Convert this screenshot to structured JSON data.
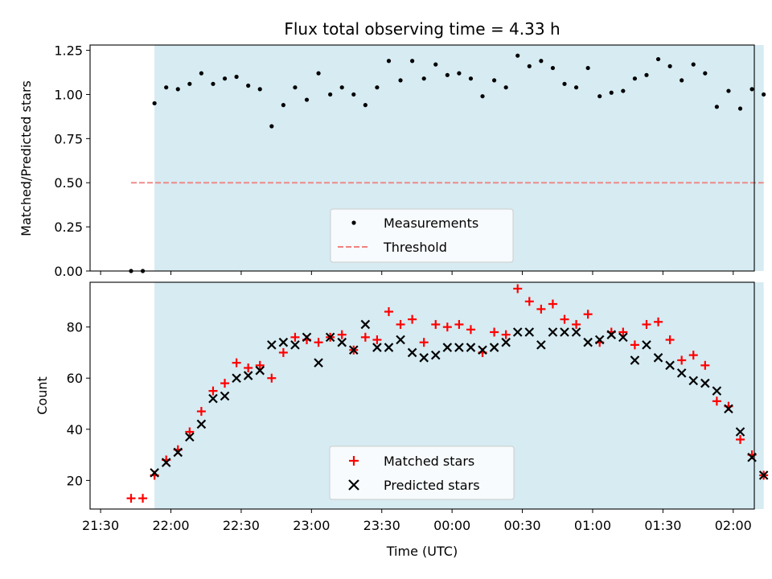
{
  "chart_data": [
    {
      "type": "scatter",
      "title": "Flux total observing time = 4.33 h",
      "xlabel": "",
      "ylabel": "Matched/Predicted stars",
      "ylim": [
        0.0,
        1.28
      ],
      "yticks": [
        0.0,
        0.25,
        0.5,
        0.75,
        1.0,
        1.25
      ],
      "ytick_labels": [
        "0.00",
        "0.25",
        "0.50",
        "0.75",
        "1.00",
        "1.25"
      ],
      "grid": false,
      "legend_position": "lower center",
      "shaded_interval": [
        "21:53",
        "02:13"
      ],
      "shade_color": "#add8e6",
      "series": [
        {
          "name": "Measurements",
          "marker": "dot",
          "color": "#000000",
          "x": [
            "21:43",
            "21:48",
            "21:53",
            "21:58",
            "22:03",
            "22:08",
            "22:13",
            "22:18",
            "22:23",
            "22:28",
            "22:33",
            "22:38",
            "22:43",
            "22:48",
            "22:53",
            "22:58",
            "23:03",
            "23:08",
            "23:13",
            "23:18",
            "23:23",
            "23:28",
            "23:33",
            "23:38",
            "23:43",
            "23:48",
            "23:53",
            "23:58",
            "00:03",
            "00:08",
            "00:13",
            "00:18",
            "00:23",
            "00:28",
            "00:33",
            "00:38",
            "00:43",
            "00:48",
            "00:53",
            "00:58",
            "01:03",
            "01:08",
            "01:13",
            "01:18",
            "01:23",
            "01:28",
            "01:33",
            "01:38",
            "01:43",
            "01:48",
            "01:53",
            "01:58",
            "02:03",
            "02:08",
            "02:13"
          ],
          "y": [
            0.0,
            0.0,
            0.95,
            1.04,
            1.03,
            1.06,
            1.12,
            1.06,
            1.09,
            1.1,
            1.05,
            1.03,
            0.82,
            0.94,
            1.04,
            0.97,
            1.12,
            1.0,
            1.04,
            1.0,
            0.94,
            1.04,
            1.19,
            1.08,
            1.19,
            1.09,
            1.17,
            1.11,
            1.12,
            1.09,
            0.99,
            1.08,
            1.04,
            1.22,
            1.16,
            1.19,
            1.15,
            1.06,
            1.04,
            1.15,
            0.99,
            1.01,
            1.02,
            1.09,
            1.11,
            1.2,
            1.16,
            1.08,
            1.17,
            1.12,
            0.93,
            1.02,
            0.92,
            1.03,
            1.0
          ]
        },
        {
          "name": "Threshold",
          "type": "line",
          "style": "dashed",
          "color": "#f08080",
          "x": [
            "21:43",
            "02:13"
          ],
          "y": [
            0.5,
            0.5
          ]
        }
      ]
    },
    {
      "type": "scatter",
      "title": "",
      "xlabel": "Time (UTC)",
      "ylabel": "Count",
      "ylim": [
        8.8,
        97.5
      ],
      "yticks": [
        20,
        40,
        60,
        80
      ],
      "ytick_labels": [
        "20",
        "40",
        "60",
        "80"
      ],
      "xticks": [
        "21:30",
        "22:00",
        "22:30",
        "23:00",
        "23:30",
        "00:00",
        "00:30",
        "01:00",
        "01:30",
        "02:00"
      ],
      "grid": false,
      "legend_position": "lower center",
      "shaded_interval": [
        "21:53",
        "02:13"
      ],
      "shade_color": "#add8e6",
      "series": [
        {
          "name": "Matched stars",
          "marker": "plus",
          "color": "#ff0000",
          "x": [
            "21:43",
            "21:48",
            "21:53",
            "21:58",
            "22:03",
            "22:08",
            "22:13",
            "22:18",
            "22:23",
            "22:28",
            "22:33",
            "22:38",
            "22:43",
            "22:48",
            "22:53",
            "22:58",
            "23:03",
            "23:08",
            "23:13",
            "23:18",
            "23:23",
            "23:28",
            "23:33",
            "23:38",
            "23:43",
            "23:48",
            "23:53",
            "23:58",
            "00:03",
            "00:08",
            "00:13",
            "00:18",
            "00:23",
            "00:28",
            "00:33",
            "00:38",
            "00:43",
            "00:48",
            "00:53",
            "00:58",
            "01:03",
            "01:08",
            "01:13",
            "01:18",
            "01:23",
            "01:28",
            "01:33",
            "01:38",
            "01:43",
            "01:48",
            "01:53",
            "01:58",
            "02:03",
            "02:08",
            "02:13"
          ],
          "y": [
            13,
            13,
            22,
            28,
            32,
            39,
            47,
            55,
            58,
            66,
            64,
            65,
            60,
            70,
            76,
            75,
            74,
            76,
            77,
            71,
            76,
            75,
            86,
            81,
            83,
            74,
            81,
            80,
            81,
            79,
            70,
            78,
            77,
            95,
            90,
            87,
            89,
            83,
            81,
            85,
            74,
            78,
            78,
            73,
            81,
            82,
            75,
            67,
            69,
            65,
            51,
            49,
            36,
            30,
            22
          ]
        },
        {
          "name": "Predicted stars",
          "marker": "x",
          "color": "#000000",
          "x": [
            "21:53",
            "21:58",
            "22:03",
            "22:08",
            "22:13",
            "22:18",
            "22:23",
            "22:28",
            "22:33",
            "22:38",
            "22:43",
            "22:48",
            "22:53",
            "22:58",
            "23:03",
            "23:08",
            "23:13",
            "23:18",
            "23:23",
            "23:28",
            "23:33",
            "23:38",
            "23:43",
            "23:48",
            "23:53",
            "23:58",
            "00:03",
            "00:08",
            "00:13",
            "00:18",
            "00:23",
            "00:28",
            "00:33",
            "00:38",
            "00:43",
            "00:48",
            "00:53",
            "00:58",
            "01:03",
            "01:08",
            "01:13",
            "01:18",
            "01:23",
            "01:28",
            "01:33",
            "01:38",
            "01:43",
            "01:48",
            "01:53",
            "01:58",
            "02:03",
            "02:08",
            "02:13"
          ],
          "y": [
            23,
            27,
            31,
            37,
            42,
            52,
            53,
            60,
            61,
            63,
            73,
            74,
            73,
            76,
            66,
            76,
            74,
            71,
            81,
            72,
            72,
            75,
            70,
            68,
            69,
            72,
            72,
            72,
            71,
            72,
            74,
            78,
            78,
            73,
            78,
            78,
            78,
            74,
            75,
            77,
            76,
            67,
            73,
            68,
            65,
            62,
            59,
            58,
            55,
            48,
            39,
            29,
            22
          ]
        }
      ]
    }
  ]
}
